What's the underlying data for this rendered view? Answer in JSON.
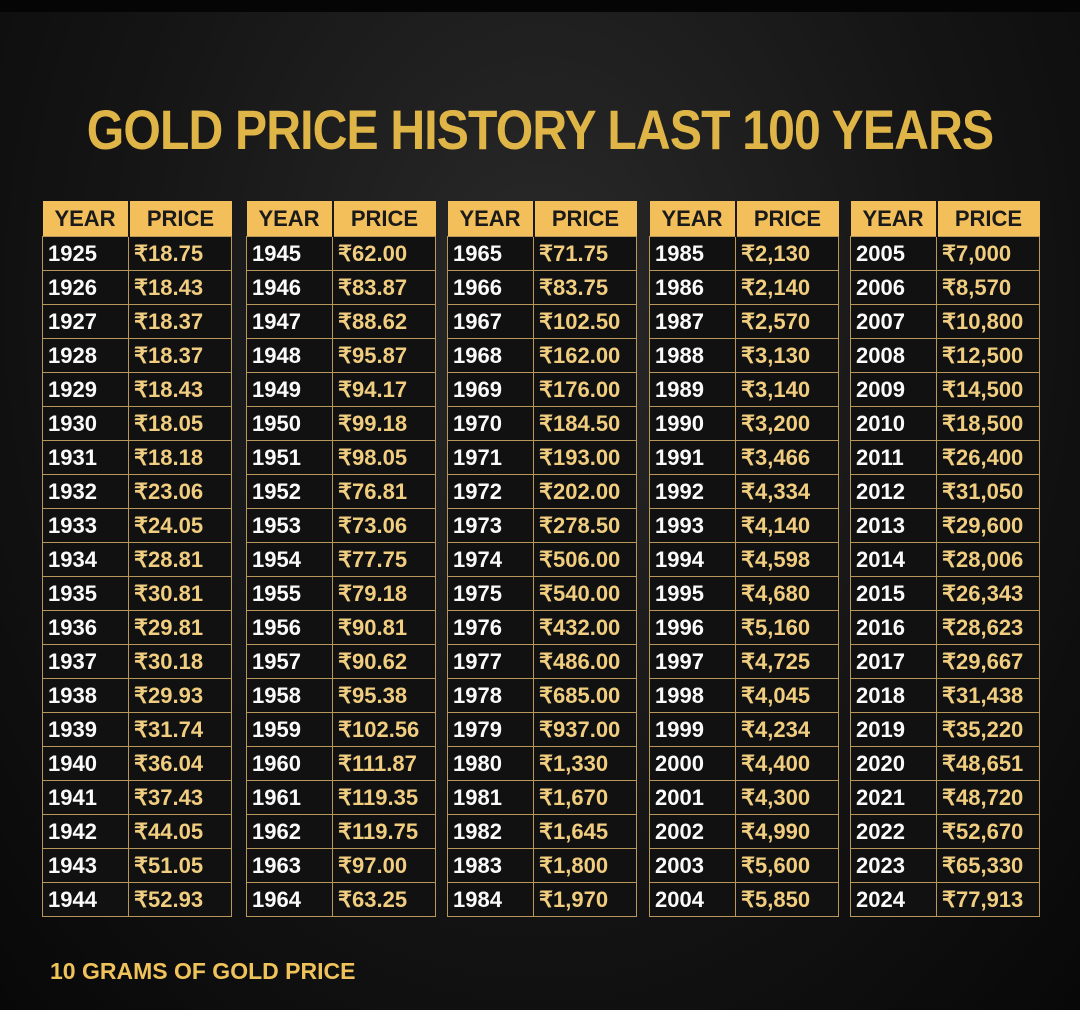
{
  "title": "GOLD PRICE HISTORY LAST 100 YEARS",
  "headers": {
    "year": "YEAR",
    "price": "PRICE"
  },
  "footer": "10 GRAMS OF GOLD PRICE",
  "colors": {
    "gold": "#f2bf5a",
    "background": "#151515",
    "price_text": "#f0cd7f"
  },
  "tables": [
    {
      "rows": [
        [
          "1925",
          "₹18.75"
        ],
        [
          "1926",
          "₹18.43"
        ],
        [
          "1927",
          "₹18.37"
        ],
        [
          "1928",
          "₹18.37"
        ],
        [
          "1929",
          "₹18.43"
        ],
        [
          "1930",
          "₹18.05"
        ],
        [
          "1931",
          "₹18.18"
        ],
        [
          "1932",
          "₹23.06"
        ],
        [
          "1933",
          "₹24.05"
        ],
        [
          "1934",
          "₹28.81"
        ],
        [
          "1935",
          "₹30.81"
        ],
        [
          "1936",
          "₹29.81"
        ],
        [
          "1937",
          "₹30.18"
        ],
        [
          "1938",
          "₹29.93"
        ],
        [
          "1939",
          "₹31.74"
        ],
        [
          "1940",
          "₹36.04"
        ],
        [
          "1941",
          "₹37.43"
        ],
        [
          "1942",
          "₹44.05"
        ],
        [
          "1943",
          "₹51.05"
        ],
        [
          "1944",
          "₹52.93"
        ]
      ]
    },
    {
      "rows": [
        [
          "1945",
          "₹62.00"
        ],
        [
          "1946",
          "₹83.87"
        ],
        [
          "1947",
          "₹88.62"
        ],
        [
          "1948",
          "₹95.87"
        ],
        [
          "1949",
          "₹94.17"
        ],
        [
          "1950",
          "₹99.18"
        ],
        [
          "1951",
          "₹98.05"
        ],
        [
          "1952",
          "₹76.81"
        ],
        [
          "1953",
          "₹73.06"
        ],
        [
          "1954",
          "₹77.75"
        ],
        [
          "1955",
          "₹79.18"
        ],
        [
          "1956",
          "₹90.81"
        ],
        [
          "1957",
          "₹90.62"
        ],
        [
          "1958",
          "₹95.38"
        ],
        [
          "1959",
          "₹102.56"
        ],
        [
          "1960",
          "₹111.87"
        ],
        [
          "1961",
          "₹119.35"
        ],
        [
          "1962",
          "₹119.75"
        ],
        [
          "1963",
          "₹97.00"
        ],
        [
          "1964",
          "₹63.25"
        ]
      ]
    },
    {
      "rows": [
        [
          "1965",
          "₹71.75"
        ],
        [
          "1966",
          "₹83.75"
        ],
        [
          "1967",
          "₹102.50"
        ],
        [
          "1968",
          "₹162.00"
        ],
        [
          "1969",
          "₹176.00"
        ],
        [
          "1970",
          "₹184.50"
        ],
        [
          "1971",
          "₹193.00"
        ],
        [
          "1972",
          "₹202.00"
        ],
        [
          "1973",
          "₹278.50"
        ],
        [
          "1974",
          "₹506.00"
        ],
        [
          "1975",
          "₹540.00"
        ],
        [
          "1976",
          "₹432.00"
        ],
        [
          "1977",
          "₹486.00"
        ],
        [
          "1978",
          "₹685.00"
        ],
        [
          "1979",
          "₹937.00"
        ],
        [
          "1980",
          "₹1,330"
        ],
        [
          "1981",
          "₹1,670"
        ],
        [
          "1982",
          "₹1,645"
        ],
        [
          "1983",
          "₹1,800"
        ],
        [
          "1984",
          "₹1,970"
        ]
      ]
    },
    {
      "rows": [
        [
          "1985",
          "₹2,130"
        ],
        [
          "1986",
          "₹2,140"
        ],
        [
          "1987",
          "₹2,570"
        ],
        [
          "1988",
          "₹3,130"
        ],
        [
          "1989",
          "₹3,140"
        ],
        [
          "1990",
          "₹3,200"
        ],
        [
          "1991",
          "₹3,466"
        ],
        [
          "1992",
          "₹4,334"
        ],
        [
          "1993",
          "₹4,140"
        ],
        [
          "1994",
          "₹4,598"
        ],
        [
          "1995",
          "₹4,680"
        ],
        [
          "1996",
          "₹5,160"
        ],
        [
          "1997",
          "₹4,725"
        ],
        [
          "1998",
          "₹4,045"
        ],
        [
          "1999",
          "₹4,234"
        ],
        [
          "2000",
          "₹4,400"
        ],
        [
          "2001",
          "₹4,300"
        ],
        [
          "2002",
          "₹4,990"
        ],
        [
          "2003",
          "₹5,600"
        ],
        [
          "2004",
          "₹5,850"
        ]
      ]
    },
    {
      "rows": [
        [
          "2005",
          "₹7,000"
        ],
        [
          "2006",
          "₹8,570"
        ],
        [
          "2007",
          "₹10,800"
        ],
        [
          "2008",
          "₹12,500"
        ],
        [
          "2009",
          "₹14,500"
        ],
        [
          "2010",
          "₹18,500"
        ],
        [
          "2011",
          "₹26,400"
        ],
        [
          "2012",
          "₹31,050"
        ],
        [
          "2013",
          "₹29,600"
        ],
        [
          "2014",
          "₹28,006"
        ],
        [
          "2015",
          "₹26,343"
        ],
        [
          "2016",
          "₹28,623"
        ],
        [
          "2017",
          "₹29,667"
        ],
        [
          "2018",
          "₹31,438"
        ],
        [
          "2019",
          "₹35,220"
        ],
        [
          "2020",
          "₹48,651"
        ],
        [
          "2021",
          "₹48,720"
        ],
        [
          "2022",
          "₹52,670"
        ],
        [
          "2023",
          "₹65,330"
        ],
        [
          "2024",
          "₹77,913"
        ]
      ]
    }
  ]
}
